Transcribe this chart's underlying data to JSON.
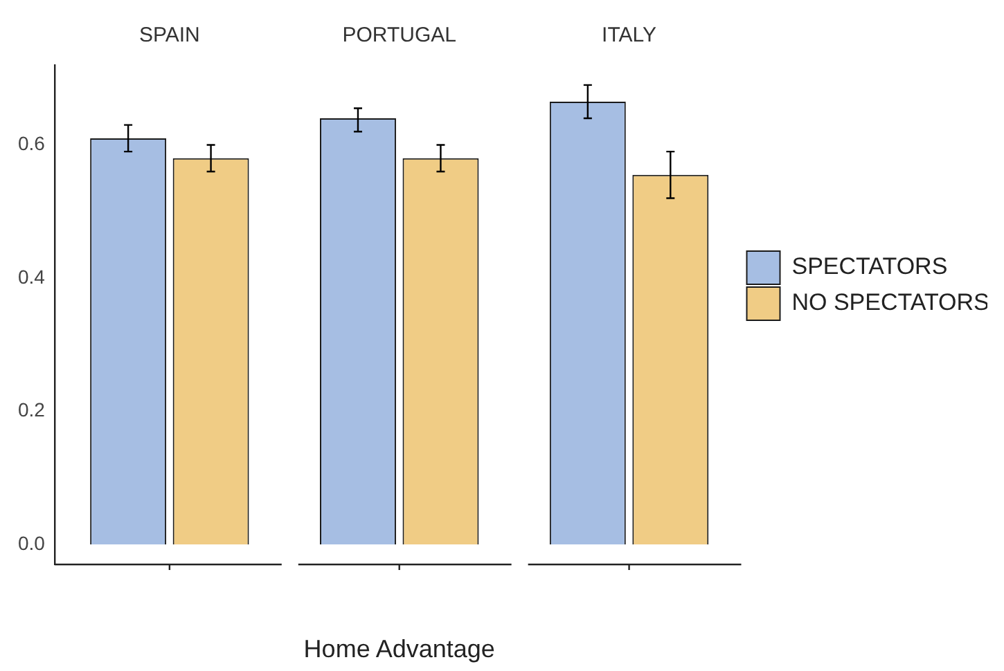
{
  "chart_data": {
    "type": "bar",
    "xlabel": "Home Advantage",
    "categories": [
      "SPAIN",
      "PORTUGAL",
      "ITALY"
    ],
    "series": [
      {
        "name": "SPECTATORS",
        "color": "#a6bee3",
        "values": [
          0.61,
          0.64,
          0.665
        ],
        "errors": [
          [
            0.59,
            0.63
          ],
          [
            0.62,
            0.655
          ],
          [
            0.64,
            0.69
          ]
        ]
      },
      {
        "name": "NO SPECTATORS",
        "color": "#f0cc85",
        "values": [
          0.58,
          0.58,
          0.555
        ],
        "errors": [
          [
            0.56,
            0.6
          ],
          [
            0.56,
            0.6
          ],
          [
            0.52,
            0.59
          ]
        ]
      }
    ],
    "ylim": [
      -0.03,
      0.72
    ],
    "yticks": [
      {
        "value": 0,
        "label": "0.0"
      },
      {
        "value": 0.2,
        "label": "0.2"
      },
      {
        "value": 0.4,
        "label": "0.4"
      },
      {
        "value": 0.6,
        "label": "0.6"
      }
    ],
    "grid": false,
    "legend": "right"
  }
}
